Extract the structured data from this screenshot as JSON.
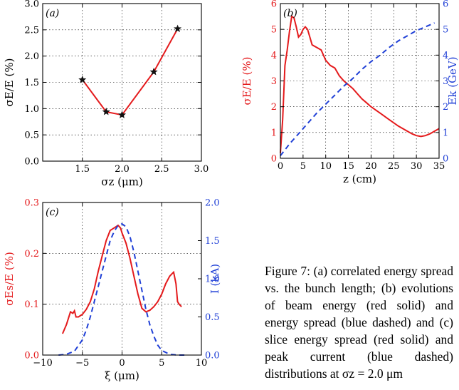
{
  "caption": {
    "text": "Figure 7: (a) correlated energy spread vs. the bunch length; (b) evolutions of beam energy (red solid) and energy spread (blue dashed) and (c) slice energy spread (red solid) and peak current (blue dashed) distributions at σz = 2.0 μm"
  },
  "colors": {
    "red": "#e41a1c",
    "blue": "#1f3fd6",
    "black": "#000000"
  },
  "chart_data": [
    {
      "id": "a",
      "type": "line",
      "panel_label": "(a)",
      "xlabel": "σz (μm)",
      "ylabel": "σE/E (%)",
      "xlim": [
        1.0,
        3.0
      ],
      "ylim": [
        0.0,
        3.0
      ],
      "xticks": [
        "1.5",
        "2.0",
        "2.5",
        "3.0"
      ],
      "yticks": [
        "0.0",
        "0.5",
        "1.0",
        "1.5",
        "2.0",
        "2.5",
        "3.0"
      ],
      "xtick_values": [
        1.5,
        2.0,
        2.5,
        3.0
      ],
      "ytick_values": [
        0.0,
        0.5,
        1.0,
        1.5,
        2.0,
        2.5,
        3.0
      ],
      "grid": true,
      "series": [
        {
          "color": "#e41a1c",
          "marker": "star",
          "x": [
            1.5,
            1.8,
            2.0,
            2.4,
            2.7
          ],
          "y": [
            1.55,
            0.94,
            0.88,
            1.7,
            2.52
          ]
        }
      ]
    },
    {
      "id": "b",
      "type": "line",
      "panel_label": "(b)",
      "xlabel": "z (cm)",
      "ylabel": "σE/E (%)",
      "ylabel_right": "Ek (GeV)",
      "xlim": [
        0,
        35
      ],
      "ylim": [
        0,
        6
      ],
      "ylim_right": [
        0,
        6
      ],
      "xticks": [
        "0",
        "5",
        "10",
        "15",
        "20",
        "25",
        "30",
        "35"
      ],
      "yticks": [
        "0",
        "1",
        "2",
        "3",
        "4",
        "5",
        "6"
      ],
      "yticks_right": [
        "0",
        "1",
        "2",
        "3",
        "4",
        "5",
        "6"
      ],
      "xtick_values": [
        0,
        5,
        10,
        15,
        20,
        25,
        30,
        35
      ],
      "ytick_values": [
        0,
        1,
        2,
        3,
        4,
        5,
        6
      ],
      "grid": true,
      "series": [
        {
          "color": "#e41a1c",
          "style": "solid",
          "axis": "left",
          "x": [
            0,
            0.5,
            1,
            1.5,
            2,
            2.5,
            3,
            3.5,
            4,
            4.5,
            5,
            5.5,
            6,
            6.5,
            7,
            7.5,
            8,
            9,
            10,
            11,
            12,
            13,
            14,
            15,
            16,
            17,
            18,
            19,
            20,
            22,
            24,
            26,
            28,
            29,
            30,
            31,
            32,
            33,
            34,
            35
          ],
          "y": [
            0.2,
            1.5,
            3.6,
            4.2,
            4.9,
            5.5,
            5.45,
            5.1,
            4.7,
            4.8,
            5.0,
            5.1,
            5.0,
            4.7,
            4.4,
            4.35,
            4.3,
            4.2,
            3.8,
            3.6,
            3.5,
            3.2,
            3.0,
            2.85,
            2.7,
            2.5,
            2.3,
            2.15,
            2.0,
            1.75,
            1.5,
            1.25,
            1.05,
            0.95,
            0.88,
            0.85,
            0.88,
            0.95,
            1.05,
            1.15
          ]
        },
        {
          "color": "#1f3fd6",
          "style": "dashed",
          "axis": "right",
          "x": [
            0,
            2,
            4,
            6,
            8,
            10,
            12,
            14,
            16,
            18,
            20,
            22,
            24,
            26,
            28,
            30,
            32,
            34
          ],
          "y": [
            0.1,
            0.55,
            0.95,
            1.35,
            1.75,
            2.1,
            2.45,
            2.8,
            3.1,
            3.45,
            3.75,
            4.0,
            4.3,
            4.55,
            4.75,
            4.95,
            5.1,
            5.25
          ]
        }
      ]
    },
    {
      "id": "c",
      "type": "line",
      "panel_label": "(c)",
      "xlabel": "ξ (μm)",
      "ylabel": "σEs/E (%)",
      "ylabel_right": "I (kA)",
      "xlim": [
        -10,
        10
      ],
      "ylim": [
        0.0,
        0.3
      ],
      "ylim_right": [
        0.0,
        2.0
      ],
      "xticks": [
        "−10",
        "−5",
        "0",
        "5",
        "10"
      ],
      "yticks": [
        "0.0",
        "0.1",
        "0.2",
        "0.3"
      ],
      "yticks_right": [
        "0.0",
        "0.5",
        "1.0",
        "1.5",
        "2.0"
      ],
      "xtick_values": [
        -10,
        -5,
        0,
        5,
        10
      ],
      "ytick_values": [
        0.0,
        0.1,
        0.2,
        0.3
      ],
      "ytick_values_right": [
        0.0,
        0.5,
        1.0,
        1.5,
        2.0
      ],
      "grid": true,
      "series": [
        {
          "color": "#e41a1c",
          "style": "solid",
          "axis": "left",
          "x": [
            -7.5,
            -7.0,
            -6.5,
            -6.2,
            -6.0,
            -5.8,
            -5.5,
            -5.0,
            -4.5,
            -4.0,
            -3.5,
            -3.0,
            -2.5,
            -2.0,
            -1.5,
            -1.0,
            -0.5,
            -0.2,
            0,
            0.5,
            1.0,
            1.5,
            2.0,
            2.5,
            3.0,
            3.5,
            4.0,
            4.5,
            5.0,
            5.5,
            6.0,
            6.3,
            6.5,
            6.8,
            7.0,
            7.2,
            7.5
          ],
          "y": [
            0.042,
            0.06,
            0.085,
            0.082,
            0.087,
            0.075,
            0.075,
            0.08,
            0.09,
            0.105,
            0.13,
            0.165,
            0.195,
            0.225,
            0.245,
            0.25,
            0.255,
            0.25,
            0.24,
            0.22,
            0.19,
            0.155,
            0.12,
            0.092,
            0.085,
            0.088,
            0.095,
            0.105,
            0.12,
            0.14,
            0.155,
            0.16,
            0.163,
            0.14,
            0.105,
            0.1,
            0.095
          ]
        },
        {
          "color": "#1f3fd6",
          "style": "dashed",
          "axis": "right",
          "x": [
            -8,
            -7,
            -6,
            -5,
            -4.5,
            -4,
            -3.5,
            -3,
            -2.5,
            -2,
            -1.5,
            -1,
            -0.5,
            0,
            0.5,
            1,
            1.5,
            2,
            2.5,
            3,
            3.5,
            4,
            4.5,
            5,
            6,
            7,
            8
          ],
          "y": [
            0.0,
            0.01,
            0.05,
            0.2,
            0.33,
            0.5,
            0.7,
            0.9,
            1.1,
            1.3,
            1.5,
            1.62,
            1.7,
            1.72,
            1.68,
            1.55,
            1.35,
            1.1,
            0.85,
            0.6,
            0.4,
            0.25,
            0.13,
            0.06,
            0.01,
            0.0,
            0.0
          ]
        }
      ]
    }
  ]
}
